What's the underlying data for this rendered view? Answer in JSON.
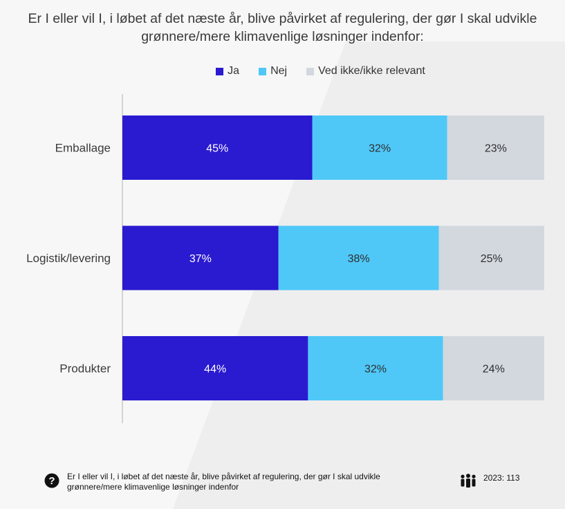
{
  "title": "Er I eller vil I, i løbet af det næste år, blive påvirket af regulering, der gør I skal udvikle grønnere/mere klimavenlige løsninger indenfor:",
  "footer": {
    "question": "Er I eller vil I, i løbet af det næste år, blive påvirket af regulering, der gør I skal udvikle grønnere/mere klimavenlige løsninger indenfor",
    "sample": "2023: 113"
  },
  "icons": {
    "help": "question-circle-icon",
    "people": "people-icon"
  },
  "chart_data": {
    "type": "bar",
    "orientation": "horizontal",
    "stacked": true,
    "categories": [
      "Emballage",
      "Logistik/levering",
      "Produkter"
    ],
    "series": [
      {
        "name": "Ja",
        "color": "#2a1ad0",
        "values": [
          45,
          37,
          44
        ],
        "label_color": "#ffffff"
      },
      {
        "name": "Nej",
        "color": "#4fc8f8",
        "values": [
          32,
          38,
          32
        ],
        "label_color": "#2e2e2e"
      },
      {
        "name": "Ved ikke/ikke relevant",
        "color": "#d3d8df",
        "values": [
          23,
          25,
          24
        ],
        "label_color": "#2e2e2e"
      }
    ],
    "xlim": [
      0,
      100
    ],
    "value_suffix": "%",
    "legend_position": "top",
    "grid": false
  }
}
